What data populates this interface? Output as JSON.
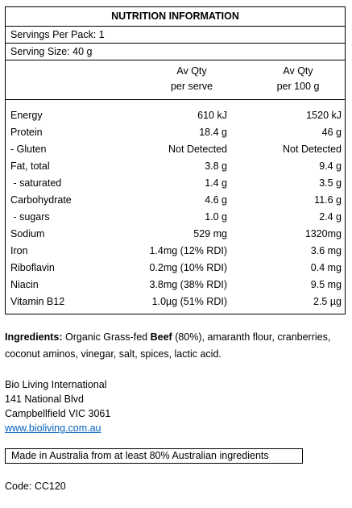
{
  "panel": {
    "title": "NUTRITION INFORMATION",
    "servings_per_pack": "Servings Per Pack: 1",
    "serving_size": "Serving Size: 40 g",
    "columns": [
      {
        "line1": "Av Qty",
        "line2": "per serve"
      },
      {
        "line1": "Av Qty",
        "line2": "per 100 g"
      }
    ],
    "rows": [
      {
        "name": "Energy",
        "per_serve": "610 kJ",
        "per_100g": "1520 kJ"
      },
      {
        "name": "Protein",
        "per_serve": "18.4 g",
        "per_100g": "46 g"
      },
      {
        "name": "- Gluten",
        "per_serve": "Not Detected",
        "per_100g": "Not Detected"
      },
      {
        "name": "Fat, total",
        "per_serve": "3.8 g",
        "per_100g": "9.4 g"
      },
      {
        "name": " - saturated",
        "per_serve": "1.4 g",
        "per_100g": "3.5 g"
      },
      {
        "name": "Carbohydrate",
        "per_serve": "4.6 g",
        "per_100g": "11.6 g"
      },
      {
        "name": " - sugars",
        "per_serve": "1.0 g",
        "per_100g": "2.4 g"
      },
      {
        "name": "Sodium",
        "per_serve": "529 mg",
        "per_100g": "1320mg"
      },
      {
        "name": "Iron",
        "per_serve": "1.4mg (12% RDI)",
        "per_100g": "3.6 mg"
      },
      {
        "name": "Riboflavin",
        "per_serve": "0.2mg (10% RDI)",
        "per_100g": "0.4 mg"
      },
      {
        "name": "Niacin",
        "per_serve": "3.8mg (38% RDI)",
        "per_100g": "9.5 mg"
      },
      {
        "name": "Vitamin B12",
        "per_serve": "1.0µg (51% RDI)",
        "per_100g": "2.5 µg"
      }
    ]
  },
  "ingredients": {
    "label": "Ingredients:",
    "text_before": " Organic Grass-fed ",
    "highlight": "Beef",
    "text_after": " (80%), amaranth flour, cranberries, coconut aminos, vinegar, salt, spices, lactic acid."
  },
  "address": {
    "company": "Bio Living International",
    "street": "141 National Blvd",
    "city": "Campbellfield VIC 3061",
    "website": "www.bioliving.com.au"
  },
  "origin_statement": "Made in Australia from at least 80% Australian ingredients",
  "code": "Code: CC120",
  "colors": {
    "link": "#0563c1",
    "border": "#000000"
  }
}
